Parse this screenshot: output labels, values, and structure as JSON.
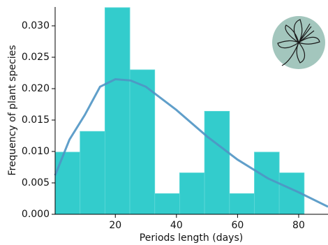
{
  "chart_data": {
    "type": "histogram",
    "xlabel": "Periods length (days)",
    "ylabel": "Frequency of plant species",
    "bins": [
      0.3,
      8.45,
      16.6,
      24.75,
      32.9,
      41.05,
      49.2,
      57.35,
      65.5,
      73.65,
      81.8
    ],
    "values": [
      0.0099,
      0.0132,
      0.0329,
      0.023,
      0.0033,
      0.0066,
      0.0164,
      0.0033,
      0.0099,
      0.0066
    ],
    "color": "#33cccc",
    "curve": {
      "color": "#4f95c4",
      "x": [
        0.3,
        5,
        10,
        15,
        20,
        25,
        30,
        40,
        50,
        60,
        70,
        80,
        89.6
      ],
      "values": [
        0.0062,
        0.0119,
        0.0158,
        0.0203,
        0.0215,
        0.0213,
        0.0203,
        0.0166,
        0.0124,
        0.0087,
        0.0057,
        0.0035,
        0.0012
      ]
    },
    "xlim": [
      0.3,
      89.6
    ],
    "ylim": [
      0,
      0.033
    ],
    "xticks": [
      20,
      40,
      60,
      80
    ],
    "yticks": [
      {
        "value": 0,
        "label": "0.000"
      },
      {
        "value": 0.005,
        "label": "0.005"
      },
      {
        "value": 0.01,
        "label": "0.010"
      },
      {
        "value": 0.015,
        "label": "0.015"
      },
      {
        "value": 0.02,
        "label": "0.020"
      },
      {
        "value": 0.025,
        "label": "0.025"
      },
      {
        "value": 0.03,
        "label": "0.030"
      }
    ],
    "grid": false
  }
}
